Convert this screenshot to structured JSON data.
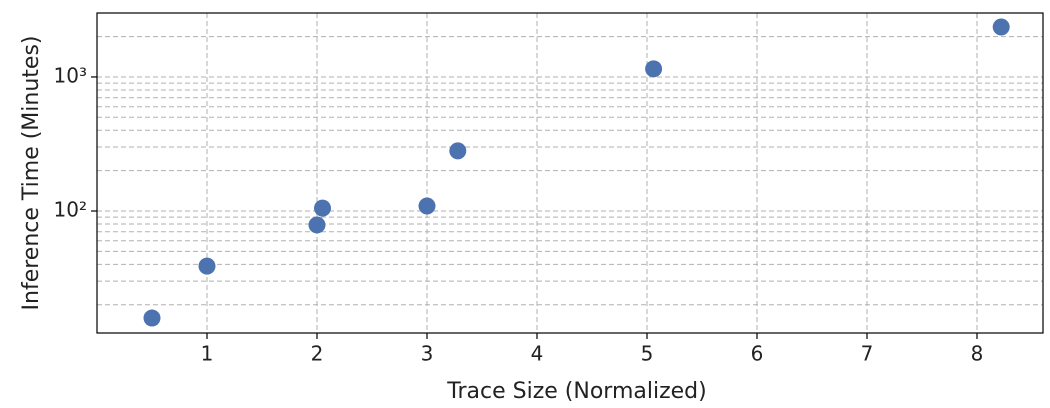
{
  "chart_data": {
    "type": "scatter",
    "xlabel": "Trace Size (Normalized)",
    "ylabel": "Inference Time (Minutes)",
    "x": [
      0.5,
      1.0,
      2.0,
      2.05,
      3.0,
      3.28,
      5.06,
      8.22
    ],
    "values": [
      15.9,
      38.8,
      78.7,
      105,
      109,
      281,
      1150,
      2360
    ],
    "color": "#4c72b0",
    "xlim": [
      0,
      8.6
    ],
    "ylim": [
      12.3,
      3000
    ],
    "ylog": true,
    "grid": true,
    "xticks": [
      1,
      2,
      3,
      4,
      5,
      6,
      7,
      8
    ],
    "yticks": [
      {
        "value": 100,
        "label": "10²"
      },
      {
        "value": 1000,
        "label": "10³"
      }
    ],
    "yminorticks": [
      20,
      30,
      40,
      50,
      60,
      70,
      80,
      90,
      200,
      300,
      400,
      500,
      600,
      700,
      800,
      900,
      2000
    ]
  }
}
